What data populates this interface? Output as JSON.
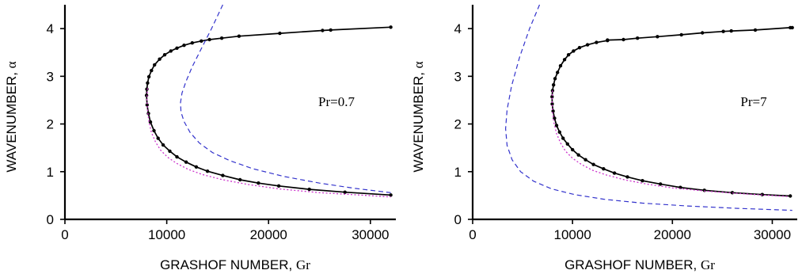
{
  "chart_data": [
    {
      "type": "line",
      "annotation": "Pr=0.7",
      "xlabel": "GRASHOF NUMBER, ",
      "xlabel_symbol": "Gr",
      "ylabel": "WAVENUMBER, ",
      "ylabel_symbol": "α",
      "xlim": [
        0,
        32500
      ],
      "ylim": [
        0,
        4.5
      ],
      "xticks": [
        0,
        10000,
        20000,
        30000
      ],
      "xtick_labels": [
        "0",
        "10000",
        "20000",
        "30000"
      ],
      "yticks": [
        0,
        1,
        2,
        3,
        4
      ],
      "ytick_labels": [
        "0",
        "1",
        "2",
        "3",
        "4"
      ],
      "series": [
        {
          "style": "solid-markers",
          "color": "#000000",
          "x": [
            32000,
            26100,
            25300,
            21100,
            17100,
            15400,
            14200,
            13400,
            12500,
            11700,
            11000,
            10400,
            9800,
            9300,
            8800,
            8500,
            8250,
            8120,
            8050,
            8020,
            8070,
            8200,
            8400,
            8750,
            9150,
            9650,
            10300,
            11000,
            11900,
            12900,
            14000,
            15500,
            17200,
            19000,
            21000,
            24000,
            27500,
            32000
          ],
          "y": [
            4.03,
            3.97,
            3.96,
            3.9,
            3.84,
            3.8,
            3.77,
            3.74,
            3.7,
            3.65,
            3.59,
            3.53,
            3.45,
            3.36,
            3.24,
            3.12,
            2.99,
            2.86,
            2.73,
            2.6,
            2.4,
            2.22,
            2.04,
            1.86,
            1.7,
            1.56,
            1.43,
            1.31,
            1.2,
            1.1,
            1.01,
            0.92,
            0.83,
            0.76,
            0.7,
            0.63,
            0.57,
            0.51
          ]
        },
        {
          "style": "dashed",
          "color": "#3333cc",
          "x": [
            15500,
            14400,
            13400,
            12500,
            11900,
            11500,
            11350,
            11400,
            11700,
            12300,
            13200,
            14500,
            16200,
            18500,
            21500,
            25000,
            28500,
            32000
          ],
          "y": [
            4.5,
            4.0,
            3.58,
            3.2,
            2.9,
            2.65,
            2.45,
            2.25,
            2.05,
            1.82,
            1.6,
            1.4,
            1.23,
            1.06,
            0.9,
            0.76,
            0.65,
            0.56
          ]
        },
        {
          "style": "dotted",
          "color": "#cc33cc",
          "x": [
            8120,
            8050,
            8100,
            8250,
            8500,
            8900,
            9400,
            10100,
            11000,
            12100,
            13500,
            15500,
            18000,
            21000,
            25000,
            29000,
            32000
          ],
          "y": [
            2.75,
            2.55,
            2.3,
            2.05,
            1.82,
            1.62,
            1.45,
            1.3,
            1.17,
            1.05,
            0.94,
            0.83,
            0.73,
            0.64,
            0.56,
            0.51,
            0.47
          ]
        }
      ]
    },
    {
      "type": "line",
      "annotation": "Pr=7",
      "xlabel": "GRASHOF NUMBER, ",
      "xlabel_symbol": "Gr",
      "ylabel": "WAVENUMBER, ",
      "ylabel_symbol": "α",
      "xlim": [
        0,
        32500
      ],
      "ylim": [
        0,
        4.5
      ],
      "xticks": [
        0,
        10000,
        20000,
        30000
      ],
      "xtick_labels": [
        "0",
        "10000",
        "20000",
        "30000"
      ],
      "yticks": [
        0,
        1,
        2,
        3,
        4
      ],
      "ytick_labels": [
        "0",
        "1",
        "2",
        "3",
        "4"
      ],
      "series": [
        {
          "style": "solid-markers",
          "color": "#000000",
          "x": [
            32000,
            31800,
            28300,
            25900,
            25100,
            23000,
            20900,
            18500,
            16500,
            15100,
            13500,
            13500,
            12400,
            11500,
            10700,
            10100,
            9600,
            9200,
            8800,
            8500,
            8250,
            8100,
            8000,
            7950,
            7970,
            8050,
            8200,
            8400,
            8700,
            9050,
            9500,
            10000,
            10600,
            11300,
            12100,
            13100,
            14200,
            15500,
            17000,
            18800,
            20800,
            23200,
            26000,
            29000,
            31800
          ],
          "y": [
            4.02,
            4.02,
            3.97,
            3.95,
            3.94,
            3.91,
            3.87,
            3.83,
            3.8,
            3.77,
            3.76,
            3.75,
            3.71,
            3.66,
            3.6,
            3.53,
            3.45,
            3.35,
            3.22,
            3.08,
            2.95,
            2.82,
            2.7,
            2.57,
            2.42,
            2.27,
            2.12,
            1.97,
            1.83,
            1.7,
            1.58,
            1.46,
            1.35,
            1.25,
            1.15,
            1.06,
            0.97,
            0.89,
            0.81,
            0.74,
            0.67,
            0.61,
            0.56,
            0.52,
            0.49
          ]
        },
        {
          "style": "dashed",
          "color": "#3333cc",
          "x": [
            6700,
            5700,
            4700,
            3900,
            3450,
            3300,
            3450,
            3950,
            4800,
            6100,
            7900,
            10200,
            13200,
            17000,
            21500,
            26500,
            32000
          ],
          "y": [
            4.5,
            4.0,
            3.4,
            2.8,
            2.3,
            1.9,
            1.55,
            1.25,
            1.0,
            0.8,
            0.64,
            0.52,
            0.42,
            0.34,
            0.28,
            0.23,
            0.19
          ]
        },
        {
          "style": "dotted",
          "color": "#cc33cc",
          "x": [
            8000,
            7950,
            8000,
            8150,
            8400,
            8800,
            9300,
            10000,
            10900,
            12000,
            13400,
            15200,
            17400,
            20000,
            23500,
            27500,
            31500
          ],
          "y": [
            2.7,
            2.5,
            2.25,
            2.02,
            1.8,
            1.6,
            1.43,
            1.28,
            1.15,
            1.03,
            0.93,
            0.83,
            0.74,
            0.66,
            0.59,
            0.53,
            0.48
          ]
        }
      ]
    }
  ]
}
